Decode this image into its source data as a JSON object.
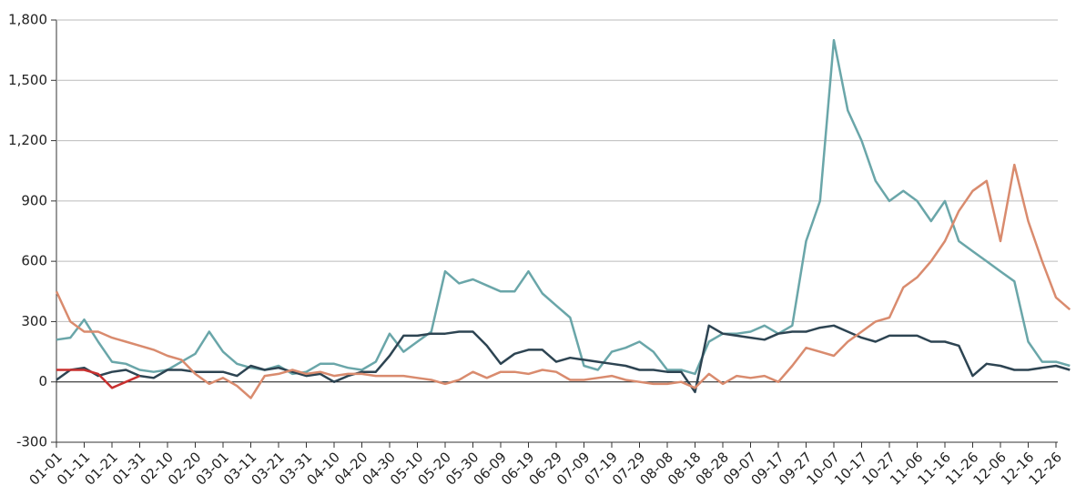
{
  "chart_data": {
    "type": "line",
    "categories": [
      "01-01",
      null,
      "01-11",
      null,
      "01-21",
      null,
      "01-31",
      null,
      "02-10",
      null,
      "02-20",
      null,
      "03-01",
      null,
      "03-11",
      null,
      "03-21",
      null,
      "03-31",
      null,
      "04-10",
      null,
      "04-20",
      null,
      "04-30",
      null,
      "05-10",
      null,
      "05-20",
      null,
      "05-30",
      null,
      "06-09",
      null,
      "06-19",
      null,
      "06-29",
      null,
      "07-09",
      null,
      "07-19",
      null,
      "07-29",
      null,
      "08-08",
      null,
      "08-18",
      null,
      "08-28",
      null,
      "09-07",
      null,
      "09-17",
      null,
      "09-27",
      null,
      "10-07",
      null,
      "10-17",
      null,
      "10-27",
      null,
      "11-06",
      null,
      "11-16",
      null,
      "11-26",
      null,
      "12-06",
      null,
      "12-16",
      null,
      "12-26",
      null
    ],
    "series": [
      {
        "color": "#6aa6a9",
        "values": [
          210,
          220,
          310,
          200,
          100,
          90,
          60,
          50,
          60,
          100,
          140,
          250,
          150,
          90,
          70,
          60,
          80,
          40,
          50,
          90,
          90,
          70,
          60,
          100,
          240,
          150,
          200,
          250,
          550,
          490,
          510,
          480,
          450,
          450,
          550,
          440,
          380,
          320,
          80,
          60,
          150,
          170,
          200,
          150,
          60,
          60,
          40,
          200,
          240,
          240,
          250,
          280,
          240,
          280,
          700,
          900,
          1700,
          1350,
          1200,
          1000,
          900,
          950,
          900,
          800,
          900,
          700,
          650,
          600,
          550,
          500,
          200,
          100,
          100,
          80
        ]
      },
      {
        "color": "#2d4452",
        "values": [
          10,
          60,
          70,
          30,
          50,
          60,
          30,
          20,
          60,
          60,
          50,
          50,
          50,
          30,
          80,
          60,
          70,
          50,
          30,
          40,
          0,
          30,
          50,
          50,
          130,
          230,
          230,
          240,
          240,
          250,
          250,
          180,
          90,
          140,
          160,
          160,
          100,
          120,
          110,
          100,
          90,
          80,
          60,
          60,
          50,
          50,
          -50,
          280,
          240,
          230,
          220,
          210,
          240,
          250,
          250,
          270,
          280,
          250,
          220,
          200,
          230,
          230,
          230,
          200,
          200,
          180,
          30,
          90,
          80,
          60,
          60,
          70,
          80,
          60
        ]
      },
      {
        "color": "#d98b6e",
        "values": [
          450,
          300,
          250,
          250,
          220,
          200,
          180,
          160,
          130,
          110,
          40,
          -10,
          20,
          -20,
          -80,
          30,
          40,
          60,
          40,
          50,
          30,
          40,
          40,
          30,
          30,
          30,
          20,
          10,
          -10,
          10,
          50,
          20,
          50,
          50,
          40,
          60,
          50,
          10,
          10,
          20,
          30,
          10,
          0,
          -10,
          -10,
          0,
          -30,
          40,
          -10,
          30,
          20,
          30,
          0,
          80,
          170,
          150,
          130,
          200,
          250,
          300,
          320,
          470,
          520,
          600,
          700,
          850,
          950,
          1000,
          700,
          1080,
          800,
          600,
          420,
          360
        ]
      },
      {
        "color": "#c8302f",
        "values": [
          60,
          60,
          60,
          40,
          -30,
          0,
          30,
          null,
          null,
          null,
          null,
          null,
          null,
          null,
          null,
          null,
          null,
          null,
          null,
          null,
          null,
          null,
          null,
          null,
          null,
          null,
          null,
          null,
          null,
          null,
          null,
          null,
          null,
          null,
          null,
          null,
          null,
          null,
          null,
          null,
          null,
          null,
          null,
          null,
          null,
          null,
          null,
          null,
          null,
          null,
          null,
          null,
          null,
          null,
          null,
          null,
          null,
          null,
          null,
          null,
          null,
          null,
          null,
          null,
          null,
          null,
          null,
          null,
          null,
          null,
          null,
          null,
          null,
          null
        ]
      }
    ],
    "ylim": [
      -300,
      1800
    ],
    "yticks": [
      -300,
      0,
      300,
      600,
      900,
      {
        "value": 1200,
        "label": "1,200"
      },
      {
        "value": 1500,
        "label": "1,500"
      },
      {
        "value": 1800,
        "label": "1,800"
      }
    ],
    "grid": true
  }
}
